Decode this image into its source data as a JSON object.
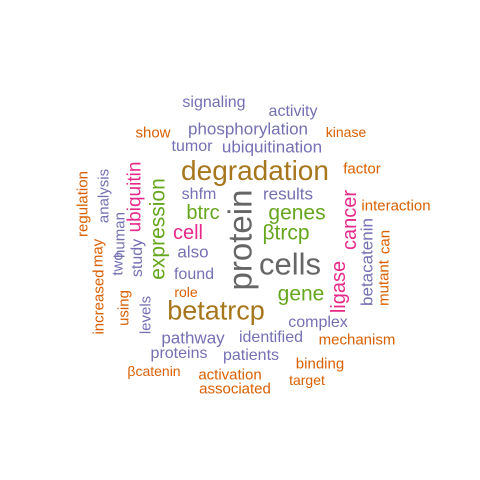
{
  "colors": {
    "orange": "#d95f02",
    "purple": "#7570b3",
    "magenta": "#e7298a",
    "green": "#66a61e",
    "olive": "#a6761d",
    "gray": "#666666"
  },
  "words": [
    {
      "text": "signaling",
      "color": "#7570b3"
    },
    {
      "text": "activity",
      "color": "#7570b3"
    },
    {
      "text": "show",
      "color": "#d95f02"
    },
    {
      "text": "phosphorylation",
      "color": "#7570b3"
    },
    {
      "text": "kinase",
      "color": "#d95f02"
    },
    {
      "text": "tumor",
      "color": "#7570b3"
    },
    {
      "text": "ubiquitination",
      "color": "#7570b3"
    },
    {
      "text": "degradation",
      "color": "#a6761d"
    },
    {
      "text": "factor",
      "color": "#d95f02"
    },
    {
      "text": "shfm",
      "color": "#7570b3"
    },
    {
      "text": "results",
      "color": "#7570b3"
    },
    {
      "text": "btrc",
      "color": "#66a61e"
    },
    {
      "text": "genes",
      "color": "#66a61e"
    },
    {
      "text": "interaction",
      "color": "#d95f02"
    },
    {
      "text": "cell",
      "color": "#e7298a"
    },
    {
      "text": "βtrcp",
      "color": "#66a61e"
    },
    {
      "text": "also",
      "color": "#7570b3"
    },
    {
      "text": "cells",
      "color": "#666666"
    },
    {
      "text": "found",
      "color": "#7570b3"
    },
    {
      "text": "gene",
      "color": "#66a61e"
    },
    {
      "text": "role",
      "color": "#d95f02"
    },
    {
      "text": "betatrcp",
      "color": "#a6761d"
    },
    {
      "text": "complex",
      "color": "#7570b3"
    },
    {
      "text": "pathway",
      "color": "#7570b3"
    },
    {
      "text": "identified",
      "color": "#7570b3"
    },
    {
      "text": "mechanism",
      "color": "#d95f02"
    },
    {
      "text": "proteins",
      "color": "#7570b3"
    },
    {
      "text": "patients",
      "color": "#7570b3"
    },
    {
      "text": "binding",
      "color": "#d95f02"
    },
    {
      "text": "βcatenin",
      "color": "#d95f02"
    },
    {
      "text": "activation",
      "color": "#d95f02"
    },
    {
      "text": "target",
      "color": "#d95f02"
    },
    {
      "text": "associated",
      "color": "#d95f02"
    },
    {
      "text": "regulation",
      "color": "#d95f02"
    },
    {
      "text": "analysis",
      "color": "#7570b3"
    },
    {
      "text": "may",
      "color": "#d95f02"
    },
    {
      "text": "increased",
      "color": "#d95f02"
    },
    {
      "text": "human",
      "color": "#7570b3"
    },
    {
      "text": "two",
      "color": "#7570b3"
    },
    {
      "text": "using",
      "color": "#d95f02"
    },
    {
      "text": "ubiquitin",
      "color": "#e7298a"
    },
    {
      "text": "study",
      "color": "#7570b3"
    },
    {
      "text": "levels",
      "color": "#7570b3"
    },
    {
      "text": "expression",
      "color": "#66a61e"
    },
    {
      "text": "protein",
      "color": "#666666"
    },
    {
      "text": "ligase",
      "color": "#e7298a"
    },
    {
      "text": "cancer",
      "color": "#e7298a"
    },
    {
      "text": "betacatenin",
      "color": "#7570b3"
    },
    {
      "text": "mutant",
      "color": "#d95f02"
    },
    {
      "text": "can",
      "color": "#d95f02"
    }
  ]
}
